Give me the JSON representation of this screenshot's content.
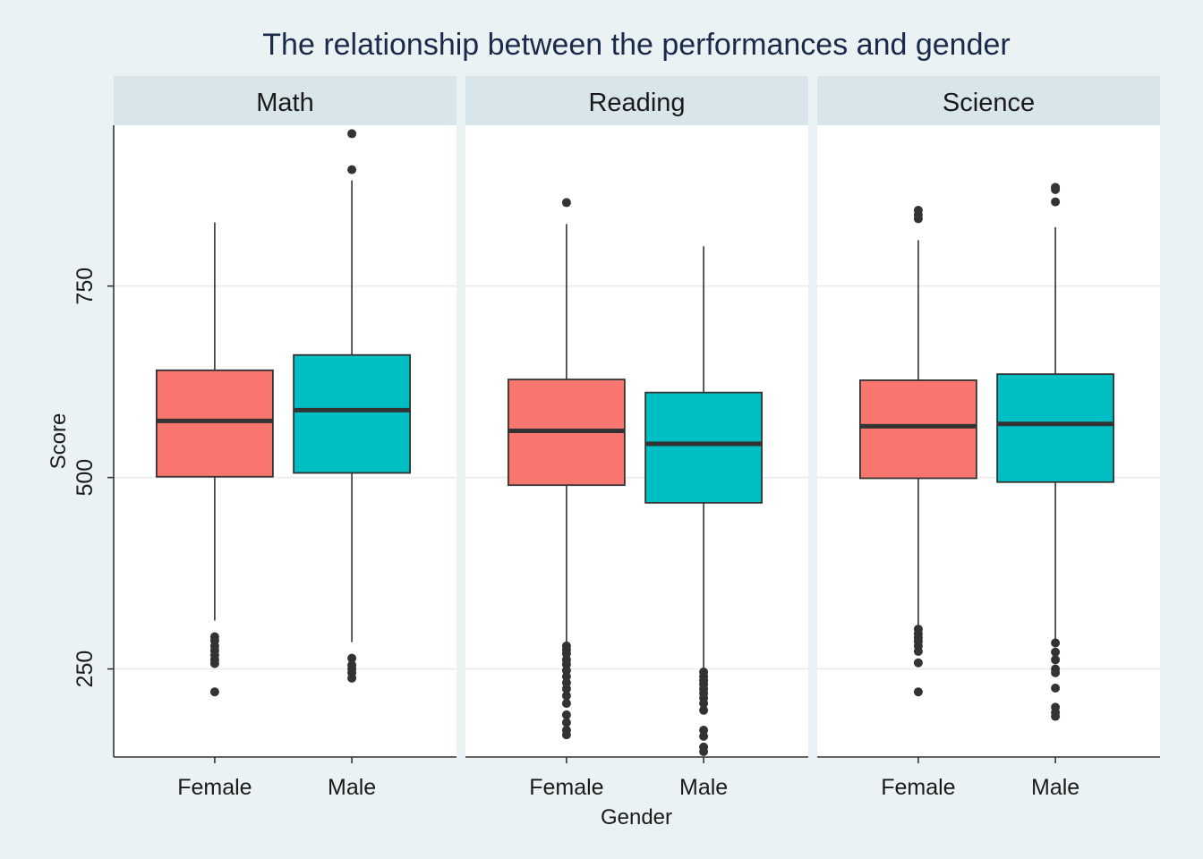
{
  "chart_data": {
    "type": "boxplot",
    "title": "The relationship between the performances and gender",
    "xlabel": "Gender",
    "ylabel": "Score",
    "ylim": [
      135,
      960
    ],
    "yticks": [
      250,
      500,
      750
    ],
    "grid": "horizontal",
    "categories": [
      "Female",
      "Male"
    ],
    "colors": {
      "Female": "#f8766d",
      "Male": "#00bfc4"
    },
    "panels": [
      {
        "name": "Math",
        "boxes": [
          {
            "group": "Female",
            "q1": 501,
            "median": 574,
            "q3": 640,
            "whisker_low": 313,
            "whisker_high": 833,
            "outliers": [
              292,
              287,
              280,
              274,
              268,
              262,
              257,
              220
            ]
          },
          {
            "group": "Male",
            "q1": 506,
            "median": 588,
            "q3": 660,
            "whisker_low": 285,
            "whisker_high": 888,
            "outliers": [
              264,
              255,
              250,
              245,
              238,
              902,
              949
            ]
          }
        ]
      },
      {
        "name": "Reading",
        "boxes": [
          {
            "group": "Female",
            "q1": 490,
            "median": 561,
            "q3": 628,
            "whisker_low": 285,
            "whisker_high": 831,
            "outliers": [
              280,
              275,
              270,
              262,
              256,
              248,
              240,
              232,
              224,
              215,
              205,
              190,
              180,
              170,
              164,
              859
            ]
          },
          {
            "group": "Male",
            "q1": 467,
            "median": 544,
            "q3": 611,
            "whisker_low": 250,
            "whisker_high": 802,
            "outliers": [
              246,
              240,
              235,
              230,
              224,
              218,
              212,
              205,
              196,
              170,
              162,
              148,
              142
            ]
          }
        ]
      },
      {
        "name": "Science",
        "boxes": [
          {
            "group": "Female",
            "q1": 499,
            "median": 567,
            "q3": 627,
            "whisker_low": 306,
            "whisker_high": 810,
            "outliers": [
              302,
              296,
              291,
              286,
              280,
              273,
              258,
              220,
              838,
              843,
              849
            ]
          },
          {
            "group": "Male",
            "q1": 494,
            "median": 570,
            "q3": 635,
            "whisker_low": 289,
            "whisker_high": 827,
            "outliers": [
              284,
              272,
              262,
              250,
              245,
              225,
              200,
              193,
              188,
              860,
              876,
              879
            ]
          }
        ]
      }
    ]
  }
}
